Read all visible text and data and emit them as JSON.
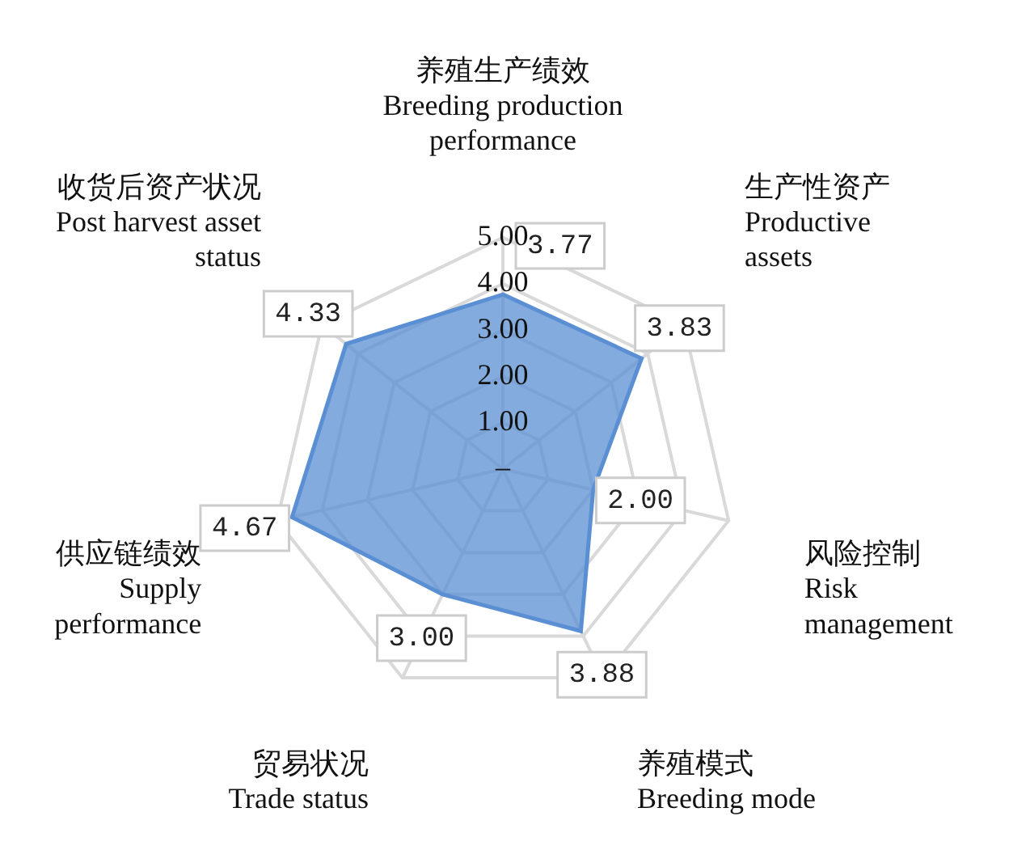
{
  "chart_data": {
    "type": "radar",
    "categories": [
      "养殖生产绩效\nBreeding production\nperformance",
      "生产性资产\nProductive\nassets",
      "风险控制\nRisk\nmanagement",
      "养殖模式\nBreeding mode",
      "贸易状况\nTrade status",
      "供应链绩效\nSupply\nperformance",
      "收货后资产状况\nPost harvest asset\nstatus"
    ],
    "series": [
      {
        "color": "#5b8fd3",
        "values": [
          3.77,
          3.83,
          2.0,
          3.88,
          3.0,
          4.67,
          4.33
        ],
        "value_labels": [
          "3.77",
          "3.83",
          "2.00",
          "3.88",
          "3.00",
          "4.67",
          "4.33"
        ]
      }
    ],
    "ylim": [
      0,
      5
    ],
    "yticks": [
      {
        "value": 0,
        "label": "–"
      },
      {
        "value": 1,
        "label": "1.00"
      },
      {
        "value": 2,
        "label": "2.00"
      },
      {
        "value": 3,
        "label": "3.00"
      },
      {
        "value": 4,
        "label": "4.00"
      },
      {
        "value": 5,
        "label": "5.00"
      }
    ],
    "grid": true,
    "legend": false
  }
}
